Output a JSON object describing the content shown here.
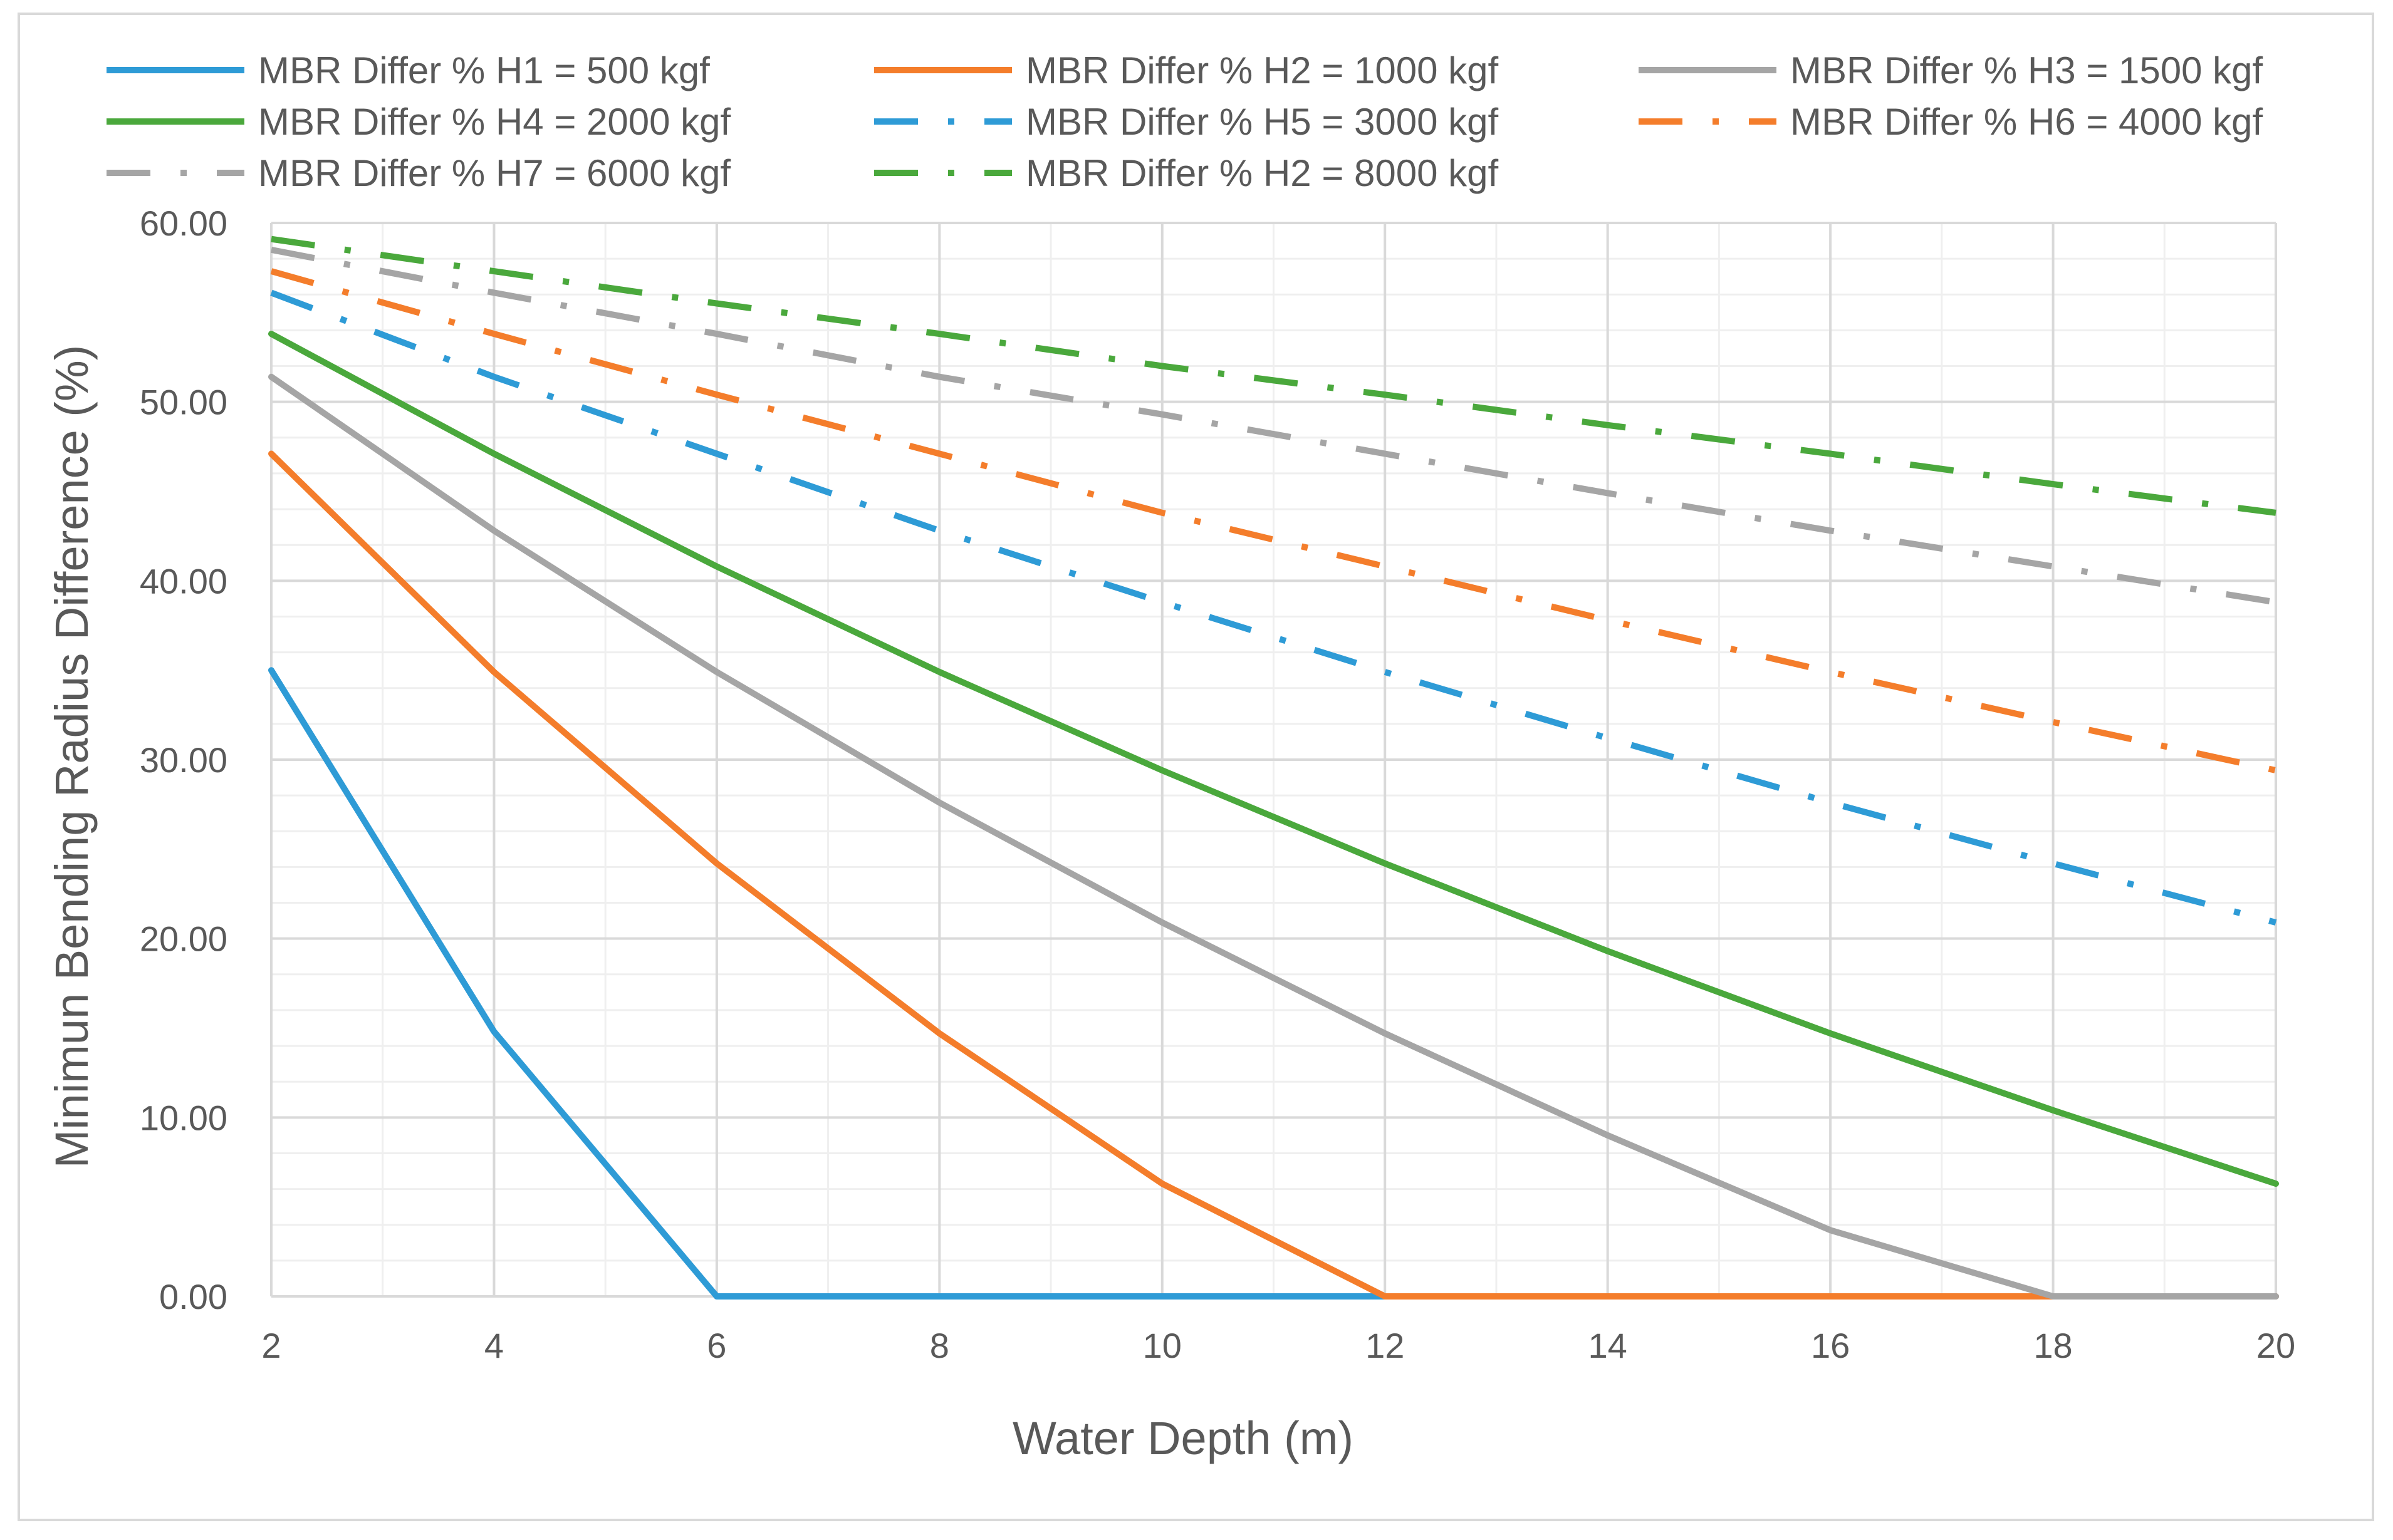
{
  "chart_data": {
    "type": "line",
    "title": "",
    "xlabel": "Water Depth (m)",
    "ylabel": "Minimun Bending Radius Difference (%)",
    "xlim": [
      2,
      20
    ],
    "ylim": [
      0,
      60
    ],
    "x_ticks": [
      "2",
      "4",
      "6",
      "8",
      "10",
      "12",
      "14",
      "16",
      "18",
      "20"
    ],
    "y_ticks": [
      "0.00",
      "10.00",
      "20.00",
      "30.00",
      "40.00",
      "50.00",
      "60.00"
    ],
    "x": [
      2,
      4,
      6,
      8,
      10,
      12,
      14,
      16,
      18,
      20
    ],
    "grid": true,
    "legend_position": "top",
    "series": [
      {
        "name": "MBR Differ % H1 = 500 kgf",
        "color": "#2e9bd6",
        "style": "solid",
        "values": [
          35.0,
          14.8,
          0.0,
          0.0,
          0.0,
          0.0,
          0.0,
          0.0,
          0.0,
          0.0
        ]
      },
      {
        "name": "MBR Differ % H2 = 1000 kgf",
        "color": "#f47d2b",
        "style": "solid",
        "values": [
          47.1,
          34.9,
          24.2,
          14.7,
          6.3,
          0.0,
          0.0,
          0.0,
          0.0,
          0.0
        ]
      },
      {
        "name": "MBR Differ % H3 = 1500 kgf",
        "color": "#a5a5a5",
        "style": "solid",
        "values": [
          51.4,
          42.8,
          34.9,
          27.6,
          20.9,
          14.7,
          9.0,
          3.7,
          0.0,
          0.0
        ]
      },
      {
        "name": "MBR Differ % H4 = 2000 kgf",
        "color": "#4aa83c",
        "style": "solid",
        "values": [
          53.8,
          47.1,
          40.8,
          34.9,
          29.4,
          24.2,
          19.3,
          14.7,
          10.4,
          6.3
        ]
      },
      {
        "name": "MBR Differ % H5 = 3000 kgf",
        "color": "#2e9bd6",
        "style": "dashdot",
        "values": [
          56.1,
          51.4,
          47.1,
          42.8,
          38.8,
          34.9,
          31.2,
          27.6,
          24.2,
          20.9
        ]
      },
      {
        "name": "MBR Differ % H6 = 4000 kgf",
        "color": "#f47d2b",
        "style": "dashdot",
        "values": [
          57.3,
          53.8,
          50.4,
          47.1,
          43.8,
          40.8,
          37.8,
          34.9,
          32.1,
          29.4
        ]
      },
      {
        "name": "MBR Differ % H7 = 6000 kgf",
        "color": "#a5a5a5",
        "style": "dashdot",
        "values": [
          58.5,
          56.1,
          53.8,
          51.4,
          49.3,
          47.1,
          44.9,
          42.8,
          40.8,
          38.8
        ]
      },
      {
        "name": "MBR Differ % H2 = 8000 kgf",
        "color": "#4aa83c",
        "style": "dashdot",
        "values": [
          59.1,
          57.3,
          55.5,
          53.8,
          52.0,
          50.4,
          48.7,
          47.1,
          45.4,
          43.8
        ]
      }
    ]
  }
}
